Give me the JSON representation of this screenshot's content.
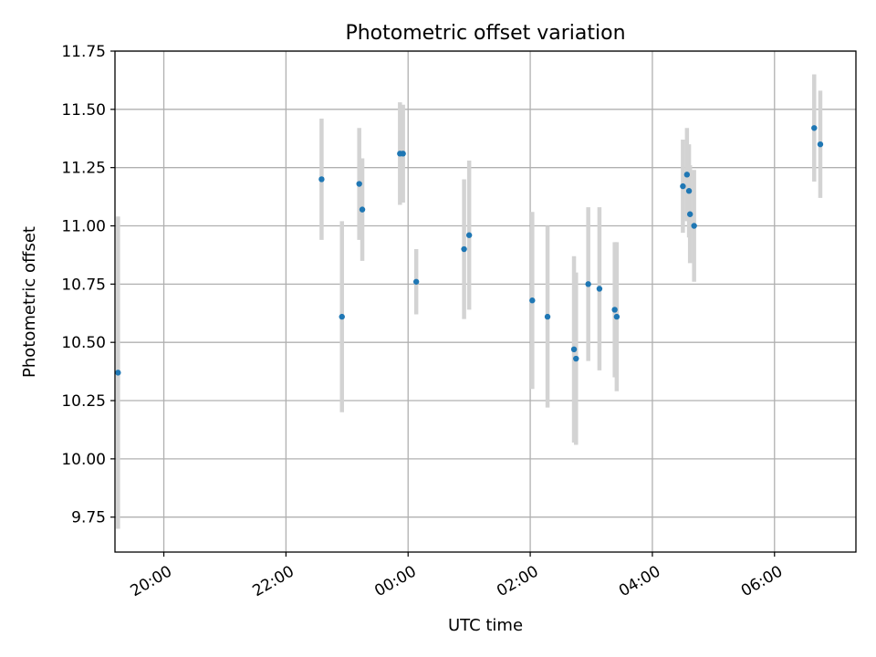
{
  "chart_data": {
    "type": "scatter",
    "title": "Photometric offset variation",
    "xlabel": "UTC time",
    "ylabel": "Photometric offset",
    "xlim": [
      "19:12",
      "07:20"
    ],
    "ylim": [
      9.6,
      11.75
    ],
    "x_ticks": [
      "20:00",
      "22:00",
      "00:00",
      "02:00",
      "04:00",
      "06:00"
    ],
    "y_ticks": [
      "9.75",
      "10.00",
      "10.25",
      "10.50",
      "10.75",
      "11.00",
      "11.25",
      "11.50",
      "11.75"
    ],
    "grid": true,
    "marker_color": "#1f77b4",
    "errorbar_color": "#d3d3d3",
    "points": [
      {
        "time": "19:15",
        "y": 10.37,
        "err": 0.67
      },
      {
        "time": "22:35",
        "y": 11.2,
        "err": 0.26
      },
      {
        "time": "22:55",
        "y": 10.61,
        "err": 0.41
      },
      {
        "time": "23:12",
        "y": 11.18,
        "err": 0.24
      },
      {
        "time": "23:15",
        "y": 11.07,
        "err": 0.22
      },
      {
        "time": "23:52",
        "y": 11.31,
        "err": 0.22
      },
      {
        "time": "23:55",
        "y": 11.31,
        "err": 0.21
      },
      {
        "time": "00:08",
        "y": 10.76,
        "err": 0.14
      },
      {
        "time": "00:55",
        "y": 10.9,
        "err": 0.3
      },
      {
        "time": "01:00",
        "y": 10.96,
        "err": 0.32
      },
      {
        "time": "02:02",
        "y": 10.68,
        "err": 0.38
      },
      {
        "time": "02:17",
        "y": 10.61,
        "err": 0.39
      },
      {
        "time": "02:43",
        "y": 10.47,
        "err": 0.4
      },
      {
        "time": "02:45",
        "y": 10.43,
        "err": 0.37
      },
      {
        "time": "02:57",
        "y": 10.75,
        "err": 0.33
      },
      {
        "time": "03:08",
        "y": 10.73,
        "err": 0.35
      },
      {
        "time": "03:23",
        "y": 10.64,
        "err": 0.29
      },
      {
        "time": "03:25",
        "y": 10.61,
        "err": 0.32
      },
      {
        "time": "04:30",
        "y": 11.17,
        "err": 0.2
      },
      {
        "time": "04:34",
        "y": 11.22,
        "err": 0.2
      },
      {
        "time": "04:36",
        "y": 11.15,
        "err": 0.2
      },
      {
        "time": "04:37",
        "y": 11.05,
        "err": 0.21
      },
      {
        "time": "04:41",
        "y": 11.0,
        "err": 0.24
      },
      {
        "time": "06:39",
        "y": 11.42,
        "err": 0.23
      },
      {
        "time": "06:45",
        "y": 11.35,
        "err": 0.23
      }
    ]
  }
}
